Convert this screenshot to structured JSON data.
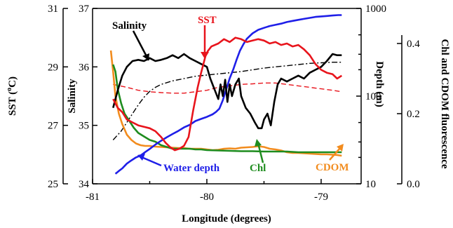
{
  "chart_data": {
    "type": "line",
    "xlabel": "Longitude (degrees)",
    "xlim": [
      -81,
      -78.65
    ],
    "x_ticks": [
      "-81",
      "-80",
      "-79"
    ],
    "axes": {
      "sst": {
        "label": "SST (",
        "label_sup": "o",
        "label_end": "C)",
        "lim": [
          25,
          31
        ],
        "ticks": [
          "25",
          "27",
          "29",
          "31"
        ]
      },
      "salinity": {
        "label": "Salinity",
        "lim": [
          34,
          37
        ],
        "ticks": [
          "34",
          "35",
          "36",
          "37"
        ]
      },
      "depth": {
        "label": "Depth (m)",
        "scale": "log",
        "lim": [
          10,
          1000
        ],
        "ticks": [
          "10",
          "100",
          "1000"
        ]
      },
      "fluorescence": {
        "label": "Chl and CDOM fluorescence",
        "lim": [
          0,
          0.5
        ],
        "ticks": [
          "0.0",
          "0.2",
          "0.4"
        ]
      }
    },
    "series": [
      {
        "key": "salinity",
        "name": "Salinity",
        "axis": "salinity",
        "color": "#000000",
        "style": "solid",
        "x": [
          -80.82,
          -80.78,
          -80.74,
          -80.7,
          -80.65,
          -80.6,
          -80.55,
          -80.5,
          -80.45,
          -80.4,
          -80.35,
          -80.3,
          -80.25,
          -80.2,
          -80.15,
          -80.1,
          -80.05,
          -80.0,
          -79.97,
          -79.93,
          -79.9,
          -79.88,
          -79.86,
          -79.84,
          -79.82,
          -79.8,
          -79.78,
          -79.75,
          -79.72,
          -79.7,
          -79.66,
          -79.62,
          -79.58,
          -79.55,
          -79.52,
          -79.5,
          -79.47,
          -79.44,
          -79.41,
          -79.38,
          -79.35,
          -79.3,
          -79.25,
          -79.2,
          -79.15,
          -79.1,
          -79.05,
          -79.0,
          -78.95,
          -78.9,
          -78.86,
          -78.82
        ],
        "y": [
          35.3,
          35.6,
          35.85,
          36.0,
          36.1,
          36.12,
          36.1,
          36.15,
          36.1,
          36.12,
          36.15,
          36.2,
          36.15,
          36.22,
          36.15,
          36.1,
          36.05,
          36.0,
          35.8,
          35.6,
          35.45,
          35.7,
          35.5,
          35.78,
          35.4,
          35.7,
          35.5,
          35.7,
          35.8,
          35.5,
          35.3,
          35.2,
          35.05,
          34.95,
          34.95,
          35.1,
          35.2,
          35.0,
          35.4,
          35.7,
          35.8,
          35.75,
          35.8,
          35.85,
          35.8,
          35.9,
          35.95,
          36.0,
          36.1,
          36.22,
          36.2,
          36.2
        ]
      },
      {
        "key": "sst",
        "name": "SST",
        "axis": "sst",
        "color": "#e8141c",
        "style": "solid",
        "x": [
          -80.82,
          -80.78,
          -80.74,
          -80.7,
          -80.65,
          -80.6,
          -80.55,
          -80.5,
          -80.45,
          -80.4,
          -80.36,
          -80.32,
          -80.28,
          -80.24,
          -80.2,
          -80.16,
          -80.12,
          -80.08,
          -80.05,
          -80.03,
          -80.01,
          -79.99,
          -79.96,
          -79.9,
          -79.85,
          -79.8,
          -79.75,
          -79.7,
          -79.65,
          -79.6,
          -79.55,
          -79.5,
          -79.45,
          -79.4,
          -79.35,
          -79.3,
          -79.25,
          -79.2,
          -79.15,
          -79.1,
          -79.05,
          -79.0,
          -78.95,
          -78.9,
          -78.86,
          -78.82
        ],
        "y": [
          27.9,
          27.6,
          27.45,
          27.2,
          27.1,
          27.0,
          26.95,
          26.9,
          26.8,
          26.6,
          26.4,
          26.25,
          26.15,
          26.2,
          26.3,
          26.6,
          27.5,
          28.3,
          28.8,
          29.1,
          29.4,
          29.55,
          29.7,
          29.8,
          29.95,
          29.85,
          30.0,
          29.95,
          29.85,
          29.9,
          29.95,
          29.9,
          29.8,
          29.85,
          29.75,
          29.8,
          29.7,
          29.75,
          29.6,
          29.4,
          29.1,
          28.9,
          28.8,
          28.75,
          28.6,
          28.7
        ]
      },
      {
        "key": "sst_dash",
        "name": "",
        "axis": "sst",
        "color": "#e8141c",
        "style": "dashed",
        "x": [
          -80.82,
          -80.7,
          -80.6,
          -80.5,
          -80.4,
          -80.3,
          -80.2,
          -80.1,
          -80.0,
          -79.9,
          -79.8,
          -79.7,
          -79.6,
          -79.5,
          -79.4,
          -79.3,
          -79.2,
          -79.1,
          -79.0,
          -78.9,
          -78.82
        ],
        "y": [
          28.4,
          28.3,
          28.2,
          28.15,
          28.12,
          28.1,
          28.1,
          28.15,
          28.2,
          28.3,
          28.35,
          28.4,
          28.42,
          28.45,
          28.45,
          28.4,
          28.35,
          28.3,
          28.25,
          28.2,
          28.15
        ]
      },
      {
        "key": "salinity_dash",
        "name": "",
        "axis": "salinity",
        "color": "#000000",
        "style": "dashdot",
        "x": [
          -80.82,
          -80.75,
          -80.7,
          -80.65,
          -80.6,
          -80.55,
          -80.5,
          -80.45,
          -80.4,
          -80.3,
          -80.2,
          -80.1,
          -80.0,
          -79.9,
          -79.8,
          -79.7,
          -79.6,
          -79.5,
          -79.4,
          -79.3,
          -79.2,
          -79.1,
          -79.0,
          -78.9,
          -78.82
        ],
        "y": [
          34.75,
          34.9,
          35.05,
          35.2,
          35.35,
          35.48,
          35.58,
          35.65,
          35.7,
          35.76,
          35.8,
          35.84,
          35.86,
          35.88,
          35.9,
          35.92,
          35.95,
          35.98,
          36.0,
          36.02,
          36.04,
          36.06,
          36.07,
          36.08,
          36.08
        ]
      },
      {
        "key": "depth",
        "name": "Water depth",
        "axis": "depth",
        "color": "#1f1fe8",
        "style": "solid",
        "x": [
          -80.8,
          -80.77,
          -80.74,
          -80.7,
          -80.66,
          -80.62,
          -80.58,
          -80.54,
          -80.5,
          -80.45,
          -80.4,
          -80.35,
          -80.3,
          -80.25,
          -80.2,
          -80.15,
          -80.1,
          -80.05,
          -80.0,
          -79.95,
          -79.92,
          -79.89,
          -79.86,
          -79.83,
          -79.8,
          -79.77,
          -79.74,
          -79.71,
          -79.68,
          -79.65,
          -79.6,
          -79.55,
          -79.5,
          -79.45,
          -79.4,
          -79.35,
          -79.3,
          -79.25,
          -79.2,
          -79.15,
          -79.1,
          -79.05,
          -79.0,
          -78.95,
          -78.9,
          -78.85,
          -78.82
        ],
        "y": [
          13,
          14,
          15,
          17,
          18.5,
          20,
          21,
          23,
          25,
          28,
          31,
          34,
          37,
          40,
          44,
          47,
          52,
          55,
          58,
          62,
          66,
          72,
          90,
          120,
          160,
          200,
          260,
          330,
          390,
          450,
          520,
          570,
          600,
          630,
          650,
          670,
          700,
          720,
          740,
          760,
          780,
          800,
          810,
          820,
          830,
          840,
          840
        ]
      },
      {
        "key": "chl",
        "name": "Chl",
        "axis": "fluorescence",
        "color": "#1e8c1e",
        "style": "solid",
        "x": [
          -80.82,
          -80.8,
          -80.78,
          -80.75,
          -80.72,
          -80.68,
          -80.64,
          -80.6,
          -80.55,
          -80.5,
          -80.45,
          -80.4,
          -80.35,
          -80.3,
          -80.25,
          -80.2,
          -80.15,
          -80.1,
          -80.05,
          -80.0,
          -79.9,
          -79.8,
          -79.7,
          -79.6,
          -79.5,
          -79.4,
          -79.3,
          -79.2,
          -79.1,
          -79.0,
          -78.9,
          -78.82
        ],
        "y": [
          0.34,
          0.32,
          0.27,
          0.23,
          0.2,
          0.18,
          0.16,
          0.145,
          0.135,
          0.125,
          0.12,
          0.11,
          0.105,
          0.1,
          0.1,
          0.1,
          0.1,
          0.098,
          0.098,
          0.096,
          0.095,
          0.094,
          0.093,
          0.093,
          0.092,
          0.092,
          0.092,
          0.09,
          0.09,
          0.09,
          0.09,
          0.09
        ]
      },
      {
        "key": "cdom",
        "name": "CDOM",
        "axis": "fluorescence",
        "color": "#f28c1e",
        "style": "solid",
        "x": [
          -80.84,
          -80.82,
          -80.8,
          -80.77,
          -80.74,
          -80.7,
          -80.66,
          -80.62,
          -80.58,
          -80.54,
          -80.5,
          -80.45,
          -80.4,
          -80.35,
          -80.3,
          -80.25,
          -80.2,
          -80.15,
          -80.1,
          -80.05,
          -80.0,
          -79.95,
          -79.9,
          -79.85,
          -79.8,
          -79.75,
          -79.7,
          -79.65,
          -79.6,
          -79.55,
          -79.5,
          -79.45,
          -79.4,
          -79.35,
          -79.3,
          -79.25,
          -79.2,
          -79.15,
          -79.1,
          -79.05,
          -79.0,
          -78.95,
          -78.9,
          -78.86,
          -78.82
        ],
        "y": [
          0.38,
          0.32,
          0.25,
          0.2,
          0.17,
          0.14,
          0.125,
          0.115,
          0.11,
          0.108,
          0.108,
          0.106,
          0.105,
          0.104,
          0.103,
          0.102,
          0.102,
          0.1,
          0.1,
          0.1,
          0.098,
          0.096,
          0.097,
          0.1,
          0.101,
          0.1,
          0.103,
          0.104,
          0.105,
          0.107,
          0.105,
          0.1,
          0.098,
          0.095,
          0.09,
          0.088,
          0.088,
          0.087,
          0.086,
          0.085,
          0.084,
          0.084,
          0.083,
          0.082,
          0.08
        ]
      }
    ],
    "annotations": [
      {
        "text": "Salinity",
        "color": "#000000"
      },
      {
        "text": "SST",
        "color": "#e8141c"
      },
      {
        "text": "Water depth",
        "color": "#1f1fe8"
      },
      {
        "text": "Chl",
        "color": "#1e8c1e"
      },
      {
        "text": "CDOM",
        "color": "#f28c1e"
      }
    ]
  }
}
